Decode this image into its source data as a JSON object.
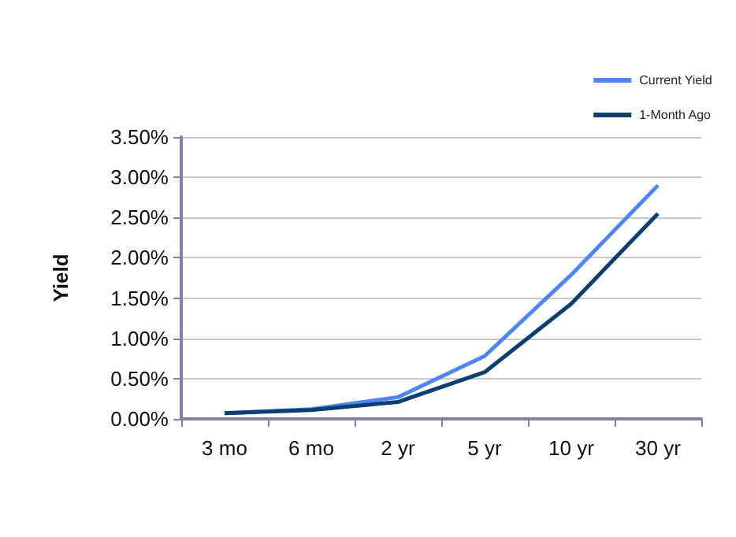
{
  "chart_data": {
    "type": "line",
    "ylabel": "Yield",
    "categories": [
      "3 mo",
      "6 mo",
      "2 yr",
      "5 yr",
      "10 yr",
      "30 yr"
    ],
    "series": [
      {
        "name": "Current Yield",
        "color": "#4f86f7",
        "values": [
          0.07,
          0.12,
          0.27,
          0.78,
          1.79,
          2.9
        ]
      },
      {
        "name": "1-Month Ago",
        "color": "#0b3f6f",
        "values": [
          0.07,
          0.11,
          0.21,
          0.58,
          1.43,
          2.55
        ]
      }
    ],
    "ylim": [
      0,
      3.5
    ],
    "yticks": [
      {
        "value": 0,
        "label": "0.00%"
      },
      {
        "value": 0.5,
        "label": "0.50%"
      },
      {
        "value": 1,
        "label": "1.00%"
      },
      {
        "value": 1.5,
        "label": "1.50%"
      },
      {
        "value": 2,
        "label": "2.00%"
      },
      {
        "value": 2.5,
        "label": "2.50%"
      },
      {
        "value": 3,
        "label": "3.00%"
      },
      {
        "value": 3.5,
        "label": "3.50%"
      }
    ],
    "grid": "y",
    "legend": "top right",
    "marker": "none",
    "line_style": "solid"
  }
}
